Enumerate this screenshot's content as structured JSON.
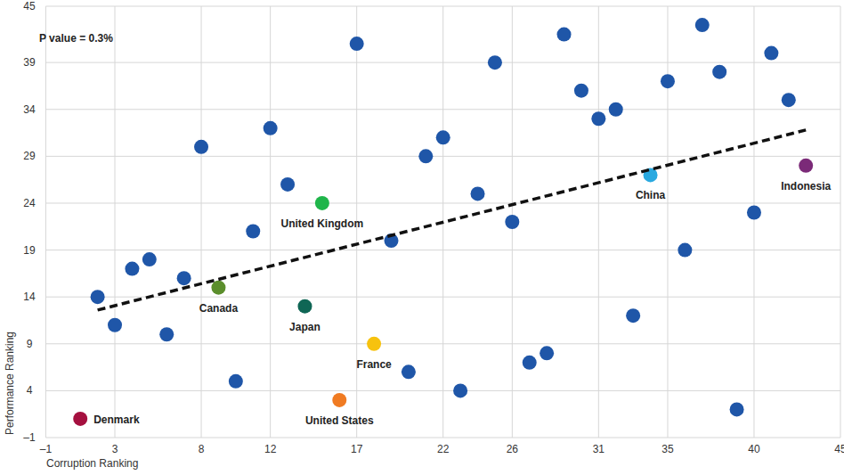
{
  "chart_data": {
    "type": "scatter",
    "annotation": "P value = 0.3%",
    "x_label": "Corruption Ranking",
    "y_label": "Performance Ranking",
    "xlim": [
      -1,
      45
    ],
    "ylim": [
      -1,
      45
    ],
    "xticks": [
      {
        "value": -1,
        "label": "–1"
      },
      3,
      8,
      12,
      17,
      22,
      26,
      31,
      35,
      40,
      45
    ],
    "yticks": [
      {
        "value": -1,
        "label": "–1"
      },
      4,
      9,
      14,
      19,
      24,
      29,
      34,
      39,
      45
    ],
    "grid": true,
    "marker": "circle",
    "x": [
      1,
      2,
      3,
      4,
      5,
      6,
      7,
      8,
      9,
      10,
      11,
      12,
      13,
      14,
      15,
      16,
      17,
      18,
      19,
      20,
      21,
      22,
      23,
      24,
      25,
      26,
      27,
      28,
      29,
      30,
      31,
      32,
      33,
      34,
      35,
      36,
      37,
      38,
      39,
      40,
      41,
      42,
      43
    ],
    "values": [
      1,
      14,
      11,
      17,
      18,
      10,
      16,
      30,
      15,
      5,
      21,
      32,
      26,
      13,
      24,
      3,
      41,
      9,
      20,
      6,
      29,
      31,
      4,
      25,
      39,
      22,
      7,
      8,
      42,
      36,
      33,
      34,
      12,
      27,
      37,
      19,
      43,
      38,
      2,
      23,
      40,
      35,
      28
    ],
    "point_labels": [
      "Denmark",
      null,
      null,
      null,
      null,
      null,
      null,
      null,
      "Canada",
      null,
      null,
      null,
      null,
      "Japan",
      "United Kingdom",
      "United States",
      null,
      "France",
      null,
      null,
      null,
      null,
      null,
      null,
      null,
      null,
      null,
      null,
      null,
      null,
      null,
      null,
      null,
      "China",
      null,
      null,
      null,
      null,
      null,
      null,
      null,
      null,
      "Indonesia"
    ],
    "colors": [
      "#a5103f",
      "#1f56a8",
      "#1f56a8",
      "#1f56a8",
      "#1f56a8",
      "#1f56a8",
      "#1f56a8",
      "#1f56a8",
      "#5b8e2c",
      "#1f56a8",
      "#1f56a8",
      "#1f56a8",
      "#1f56a8",
      "#0f6655",
      "#1fb54a",
      "#f07b22",
      "#1f56a8",
      "#f7c20e",
      "#1f56a8",
      "#1f56a8",
      "#1f56a8",
      "#1f56a8",
      "#1f56a8",
      "#1f56a8",
      "#1f56a8",
      "#1f56a8",
      "#1f56a8",
      "#1f56a8",
      "#1f56a8",
      "#1f56a8",
      "#1f56a8",
      "#1f56a8",
      "#1f56a8",
      "#2aa9e0",
      "#1f56a8",
      "#1f56a8",
      "#1f56a8",
      "#1f56a8",
      "#1f56a8",
      "#1f56a8",
      "#1f56a8",
      "#1f56a8",
      "#7b2a78"
    ],
    "trend_line": {
      "type": "line",
      "x": [
        2,
        43
      ],
      "values": [
        12.6,
        31.8
      ],
      "color": "#111111",
      "line_style": "dashed"
    }
  }
}
